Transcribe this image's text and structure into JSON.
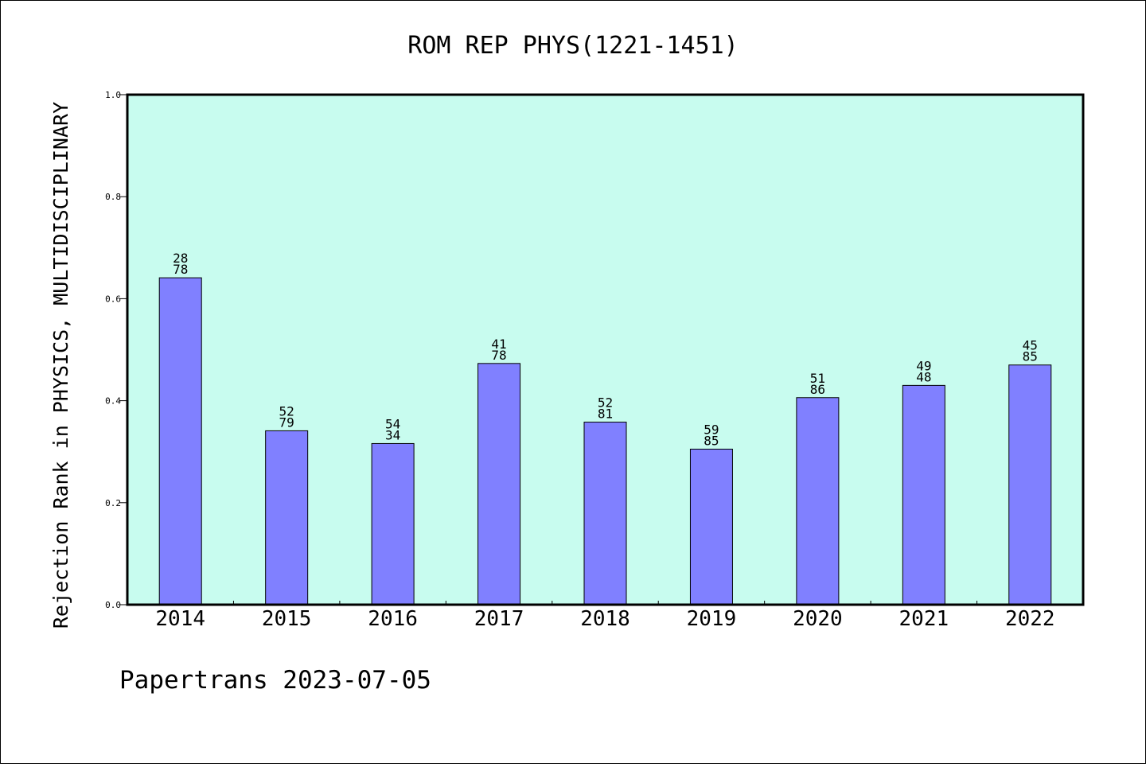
{
  "chart_data": {
    "type": "bar",
    "title": "ROM REP PHYS(1221-1451)",
    "xlabel": "",
    "ylabel": "Rejection Rank in PHYSICS, MULTIDISCIPLINARY",
    "ylim": [
      0,
      1.0
    ],
    "yticks": [
      "0.0",
      "0.2",
      "0.4",
      "0.6",
      "0.8",
      "1.0"
    ],
    "grid": false,
    "categories": [
      "2014",
      "2015",
      "2016",
      "2017",
      "2018",
      "2019",
      "2020",
      "2021",
      "2022"
    ],
    "values": [
      0.641,
      0.341,
      0.316,
      0.473,
      0.358,
      0.305,
      0.406,
      0.43,
      0.47
    ],
    "bar_labels": [
      [
        "28",
        "78"
      ],
      [
        "52",
        "79"
      ],
      [
        "54",
        "34"
      ],
      [
        "41",
        "78"
      ],
      [
        "52",
        "81"
      ],
      [
        "59",
        "85"
      ],
      [
        "51",
        "86"
      ],
      [
        "49",
        "48"
      ],
      [
        "45",
        "85"
      ]
    ],
    "colors": {
      "plot_background": "#c8fcef",
      "bar_fill": "#8080ff",
      "bar_stroke": "#000000"
    }
  },
  "footer": {
    "text": "Papertrans 2023-07-05"
  }
}
